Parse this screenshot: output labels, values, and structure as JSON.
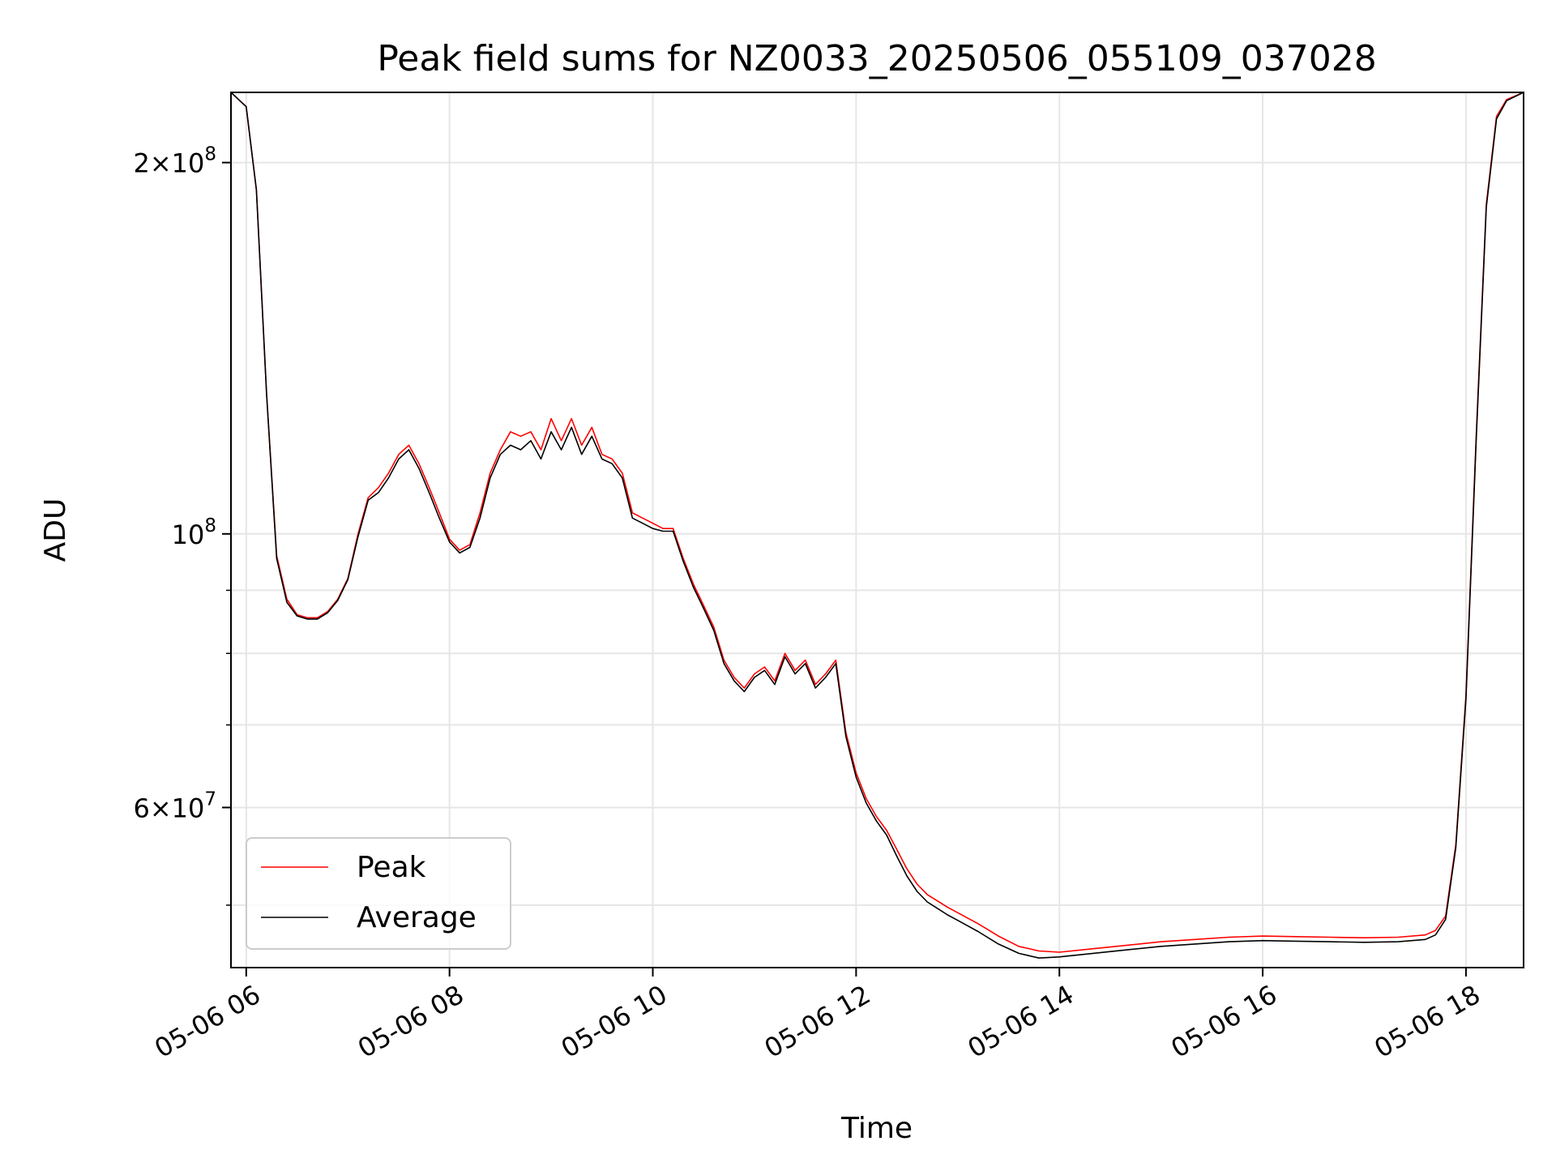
{
  "chart_data": {
    "type": "line",
    "title": "Peak field sums for NZ0033_20250506_055109_037028",
    "xlabel": "Time",
    "ylabel": "ADU",
    "yscale": "log",
    "grid": true,
    "legend_position": "lower-left",
    "xlim": [
      "2025-05-06 05:51",
      "2025-05-06 18:34"
    ],
    "ylim": [
      44500000,
      228000000
    ],
    "x_ticks": [
      {
        "value": "2025-05-06 06:00",
        "label": "05-06 06"
      },
      {
        "value": "2025-05-06 08:00",
        "label": "05-06 08"
      },
      {
        "value": "2025-05-06 10:00",
        "label": "05-06 10"
      },
      {
        "value": "2025-05-06 12:00",
        "label": "05-06 12"
      },
      {
        "value": "2025-05-06 14:00",
        "label": "05-06 14"
      },
      {
        "value": "2025-05-06 16:00",
        "label": "05-06 16"
      },
      {
        "value": "2025-05-06 18:00",
        "label": "05-06 18"
      }
    ],
    "y_major_ticks": [
      {
        "value": 200000000,
        "mantissa": "2",
        "base": "10",
        "exp": "8"
      },
      {
        "value": 100000000,
        "mantissa": "",
        "base": "10",
        "exp": "8"
      },
      {
        "value": 60000000,
        "mantissa": "6",
        "base": "10",
        "exp": "7"
      }
    ],
    "y_minor_ticks": [
      50000000,
      70000000,
      80000000,
      90000000
    ],
    "x": [
      "2025-05-06 05:51",
      "2025-05-06 06:00",
      "2025-05-06 06:06",
      "2025-05-06 06:12",
      "2025-05-06 06:18",
      "2025-05-06 06:24",
      "2025-05-06 06:30",
      "2025-05-06 06:36",
      "2025-05-06 06:42",
      "2025-05-06 06:48",
      "2025-05-06 06:54",
      "2025-05-06 07:00",
      "2025-05-06 07:06",
      "2025-05-06 07:12",
      "2025-05-06 07:18",
      "2025-05-06 07:24",
      "2025-05-06 07:30",
      "2025-05-06 07:36",
      "2025-05-06 07:42",
      "2025-05-06 07:48",
      "2025-05-06 07:54",
      "2025-05-06 08:00",
      "2025-05-06 08:06",
      "2025-05-06 08:12",
      "2025-05-06 08:18",
      "2025-05-06 08:24",
      "2025-05-06 08:30",
      "2025-05-06 08:36",
      "2025-05-06 08:42",
      "2025-05-06 08:48",
      "2025-05-06 08:54",
      "2025-05-06 09:00",
      "2025-05-06 09:06",
      "2025-05-06 09:12",
      "2025-05-06 09:18",
      "2025-05-06 09:24",
      "2025-05-06 09:30",
      "2025-05-06 09:36",
      "2025-05-06 09:42",
      "2025-05-06 09:48",
      "2025-05-06 09:54",
      "2025-05-06 10:00",
      "2025-05-06 10:06",
      "2025-05-06 10:12",
      "2025-05-06 10:18",
      "2025-05-06 10:24",
      "2025-05-06 10:30",
      "2025-05-06 10:36",
      "2025-05-06 10:42",
      "2025-05-06 10:48",
      "2025-05-06 10:54",
      "2025-05-06 11:00",
      "2025-05-06 11:06",
      "2025-05-06 11:12",
      "2025-05-06 11:18",
      "2025-05-06 11:24",
      "2025-05-06 11:30",
      "2025-05-06 11:36",
      "2025-05-06 11:42",
      "2025-05-06 11:48",
      "2025-05-06 11:54",
      "2025-05-06 12:00",
      "2025-05-06 12:06",
      "2025-05-06 12:12",
      "2025-05-06 12:18",
      "2025-05-06 12:24",
      "2025-05-06 12:30",
      "2025-05-06 12:36",
      "2025-05-06 12:42",
      "2025-05-06 12:48",
      "2025-05-06 12:54",
      "2025-05-06 13:00",
      "2025-05-06 13:12",
      "2025-05-06 13:24",
      "2025-05-06 13:36",
      "2025-05-06 13:48",
      "2025-05-06 14:00",
      "2025-05-06 14:20",
      "2025-05-06 14:40",
      "2025-05-06 15:00",
      "2025-05-06 15:20",
      "2025-05-06 15:40",
      "2025-05-06 16:00",
      "2025-05-06 16:20",
      "2025-05-06 16:40",
      "2025-05-06 17:00",
      "2025-05-06 17:20",
      "2025-05-06 17:36",
      "2025-05-06 17:42",
      "2025-05-06 17:48",
      "2025-05-06 17:54",
      "2025-05-06 18:00",
      "2025-05-06 18:06",
      "2025-05-06 18:12",
      "2025-05-06 18:18",
      "2025-05-06 18:24",
      "2025-05-06 18:34"
    ],
    "series": [
      {
        "name": "Peak",
        "color": "#ff0000",
        "values": [
          228000000,
          222000000,
          190000000,
          130000000,
          96000000,
          88500000,
          86000000,
          85500000,
          85500000,
          86500000,
          88500000,
          92000000,
          100000000,
          107000000,
          109000000,
          112000000,
          116000000,
          118000000,
          114000000,
          109000000,
          104000000,
          99000000,
          97000000,
          98000000,
          104000000,
          112000000,
          117000000,
          121000000,
          120000000,
          121000000,
          117000000,
          124000000,
          119000000,
          124000000,
          118000000,
          122000000,
          116000000,
          115000000,
          112000000,
          104000000,
          103000000,
          102000000,
          101000000,
          101000000,
          95500000,
          91000000,
          87500000,
          84000000,
          79000000,
          76500000,
          75000000,
          77000000,
          78000000,
          76000000,
          80000000,
          77500000,
          79000000,
          75500000,
          77000000,
          79000000,
          69000000,
          64000000,
          61000000,
          59000000,
          57500000,
          55500000,
          53500000,
          52000000,
          51000000,
          50400000,
          49800000,
          49300000,
          48300000,
          47200000,
          46300000,
          45900000,
          45800000,
          46100000,
          46400000,
          46700000,
          46900000,
          47100000,
          47200000,
          47150000,
          47100000,
          47050000,
          47100000,
          47300000,
          47700000,
          49000000,
          56000000,
          74000000,
          120000000,
          185000000,
          218000000,
          225000000,
          228000000
        ]
      },
      {
        "name": "Average",
        "color": "#000000",
        "values": [
          228000000,
          222000000,
          190000000,
          130000000,
          95500000,
          88000000,
          85800000,
          85300000,
          85300000,
          86300000,
          88300000,
          91800000,
          99500000,
          106500000,
          108000000,
          111000000,
          115000000,
          117000000,
          113000000,
          108000000,
          103000000,
          98500000,
          96500000,
          97500000,
          103000000,
          111000000,
          116000000,
          118000000,
          117000000,
          119000000,
          115000000,
          121000000,
          117000000,
          122000000,
          116000000,
          120000000,
          115000000,
          114000000,
          111000000,
          103000000,
          102000000,
          101000000,
          100500000,
          100500000,
          95000000,
          90500000,
          87000000,
          83500000,
          78500000,
          76000000,
          74500000,
          76500000,
          77500000,
          75500000,
          79500000,
          77000000,
          78500000,
          75000000,
          76500000,
          78500000,
          68500000,
          63500000,
          60500000,
          58500000,
          57000000,
          54800000,
          52800000,
          51300000,
          50300000,
          49700000,
          49100000,
          48600000,
          47600000,
          46500000,
          45700000,
          45300000,
          45400000,
          45700000,
          46000000,
          46300000,
          46500000,
          46700000,
          46800000,
          46750000,
          46700000,
          46650000,
          46700000,
          46900000,
          47300000,
          48700000,
          55700000,
          73500000,
          119000000,
          184000000,
          217000000,
          224500000,
          228000000
        ]
      }
    ],
    "legend": [
      {
        "label": "Peak",
        "color": "#ff0000"
      },
      {
        "label": "Average",
        "color": "#000000"
      }
    ]
  }
}
